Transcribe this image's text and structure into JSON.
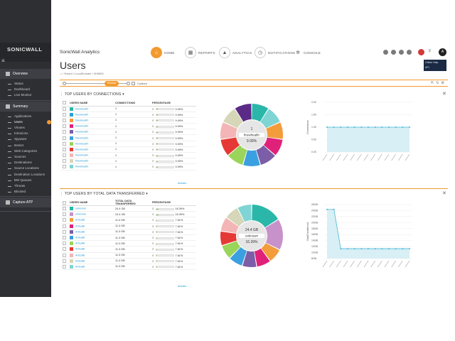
{
  "sidebar": {
    "logo": "SONICWALL",
    "sections": [
      {
        "label": "Overview",
        "items": [
          "Status",
          "Dashboard",
          "Live Monitor"
        ]
      },
      {
        "label": "Summary",
        "items": [
          "Applications",
          "Users",
          "Viruses",
          "Intrusions",
          "Spyware",
          "Botnet",
          "Web Categories",
          "Sources",
          "Destinations",
          "Source Locations",
          "Destination Locations",
          "BW Queues",
          "Threats",
          "Blocked"
        ]
      },
      {
        "label": "Capture ATP",
        "items": []
      }
    ],
    "active_item": "Users"
  },
  "header": {
    "brand": "SonicWall Analytics",
    "nav": [
      {
        "label": "HOME",
        "icon": "home-icon",
        "active": true
      },
      {
        "label": "REPORTS",
        "icon": "reports-icon",
        "active": false
      },
      {
        "label": "ANALYTICS",
        "icon": "analytics-icon",
        "active": false
      },
      {
        "label": "NOTIFICATIONS",
        "icon": "clock-icon",
        "active": false
      },
      {
        "label": "CONSOLE",
        "icon": "gear-icon",
        "active": false
      }
    ],
    "avatar": "A",
    "tooltip": [
      "Online Help",
      "API"
    ]
  },
  "page": {
    "title": "Users",
    "breadcrumb": "/ Tenant / LocalDomain / 0H0800"
  },
  "timeline": {
    "pill": "Window",
    "custom_label": "Custom"
  },
  "panel1": {
    "title": "TOP USERS BY CONNECTIONS",
    "columns": [
      "USERS NAME",
      "CONNECTIONS",
      "PERCENTAGE"
    ],
    "rows": [
      {
        "name": "firewhealth",
        "value": "1",
        "pct": "9.09%",
        "color": "#2ab7a9"
      },
      {
        "name": "firewhealth",
        "value": "1",
        "pct": "9.09%",
        "color": "#2a9fd6"
      },
      {
        "name": "firewhealth",
        "value": "1",
        "pct": "9.09%",
        "color": "#f39c3c"
      },
      {
        "name": "firewhealth",
        "value": "1",
        "pct": "9.09%",
        "color": "#e0217a"
      },
      {
        "name": "firewhealth",
        "value": "1",
        "pct": "9.09%",
        "color": "#7b5ea7"
      },
      {
        "name": "firewhealth",
        "value": "1",
        "pct": "9.09%",
        "color": "#3aa0e0"
      },
      {
        "name": "firewhealth",
        "value": "1",
        "pct": "9.09%",
        "color": "#9bd45a"
      },
      {
        "name": "firewhealth",
        "value": "1",
        "pct": "9.09%",
        "color": "#e53935"
      },
      {
        "name": "firewhealth",
        "value": "1",
        "pct": "9.09%",
        "color": "#f3b5b5"
      },
      {
        "name": "firewhealth",
        "value": "1",
        "pct": "9.09%",
        "color": "#d6d6b8"
      },
      {
        "name": "firewhealth",
        "value": "1",
        "pct": "9.09%",
        "color": "#7fd4d4"
      }
    ],
    "details": "details...",
    "donut_center": [
      "1",
      "firewhealth",
      "9.09%"
    ],
    "chart_ylabel": "Connections"
  },
  "panel2": {
    "title": "TOP USERS BY TOTAL DATA TRANSFERRED",
    "columns": [
      "USERS NAME",
      "TOTAL DATA TRANSFERRED",
      "PERCENTAGE"
    ],
    "rows": [
      {
        "name": "unknown",
        "value": "24.4 GB",
        "pct": "16.39%",
        "color": "#2ab7a9"
      },
      {
        "name": "unknown",
        "value": "24.4 GB",
        "pct": "16.39%",
        "color": "#c792c9"
      },
      {
        "name": "ArticalB",
        "value": "11.3 GB",
        "pct": "7.61%",
        "color": "#f39c3c"
      },
      {
        "name": "ArticalB",
        "value": "11.3 GB",
        "pct": "7.61%",
        "color": "#e0217a"
      },
      {
        "name": "ArticalB",
        "value": "11.3 GB",
        "pct": "7.61%",
        "color": "#7b5ea7"
      },
      {
        "name": "ArticalB",
        "value": "11.3 GB",
        "pct": "7.61%",
        "color": "#3aa0e0"
      },
      {
        "name": "ArticalB",
        "value": "11.3 GB",
        "pct": "7.61%",
        "color": "#9bd45a"
      },
      {
        "name": "ArticalB",
        "value": "11.3 GB",
        "pct": "7.61%",
        "color": "#e53935"
      },
      {
        "name": "ArticalB",
        "value": "11.3 GB",
        "pct": "7.61%",
        "color": "#f3b5b5"
      },
      {
        "name": "ArticalB",
        "value": "11.3 GB",
        "pct": "7.61%",
        "color": "#d6d6b8"
      },
      {
        "name": "ArticalB",
        "value": "11.3 GB",
        "pct": "7.61%",
        "color": "#7fd4d4"
      }
    ],
    "details": "details...",
    "donut_center": [
      "24.4 GB",
      "unknown",
      "16.39%"
    ],
    "chart_ylabel": "DataTransferred"
  },
  "chart_data": [
    {
      "type": "pie",
      "categories": [
        "firewhealth",
        "firewhealth",
        "firewhealth",
        "firewhealth",
        "firewhealth",
        "firewhealth",
        "firewhealth",
        "firewhealth",
        "firewhealth",
        "firewhealth",
        "firewhealth"
      ],
      "values": [
        9.09,
        9.09,
        9.09,
        9.09,
        9.09,
        9.09,
        9.09,
        9.09,
        9.09,
        9.09,
        9.09
      ],
      "colors": [
        "#2ab7a9",
        "#7fd4d4",
        "#f39c3c",
        "#e0217a",
        "#7b5ea7",
        "#3aa0e0",
        "#9bd45a",
        "#e53935",
        "#f3b5b5",
        "#d6d6b8",
        "#5b2a86"
      ]
    },
    {
      "type": "area",
      "x": [
        "",
        "",
        "",
        "",
        "",
        "",
        "",
        "",
        "",
        "",
        "",
        "",
        ""
      ],
      "values": [
        1,
        1,
        1,
        1,
        1,
        1,
        1,
        1,
        1,
        1,
        1,
        1,
        1
      ],
      "yticks": [
        "0.00",
        "0.50",
        "1.00",
        "1.50",
        "2.00"
      ],
      "ylim": [
        0,
        2
      ],
      "ylabel": "Connections"
    },
    {
      "type": "pie",
      "categories": [
        "unknown",
        "unknown",
        "ArticalB",
        "ArticalB",
        "ArticalB",
        "ArticalB",
        "ArticalB",
        "ArticalB",
        "ArticalB",
        "ArticalB",
        "ArticalB"
      ],
      "values": [
        16.39,
        16.39,
        7.61,
        7.61,
        7.61,
        7.61,
        7.61,
        7.61,
        7.61,
        7.61,
        7.61
      ],
      "colors": [
        "#2ab7a9",
        "#c792c9",
        "#f39c3c",
        "#e0217a",
        "#7b5ea7",
        "#3aa0e0",
        "#9bd45a",
        "#e53935",
        "#f3b5b5",
        "#d6d6b8",
        "#7fd4d4"
      ]
    },
    {
      "type": "area",
      "x": [
        "",
        "",
        "",
        "",
        "",
        "",
        "",
        "",
        "",
        "",
        "",
        "",
        ""
      ],
      "values": [
        24.4,
        24.4,
        11.3,
        11.3,
        11.3,
        11.3,
        11.3,
        11.3,
        11.3,
        11.3,
        11.3,
        11.3,
        11.3
      ],
      "yticks": [
        "8GB",
        "10GB",
        "12GB",
        "14GB",
        "16GB",
        "18GB",
        "20GB",
        "22GB",
        "24GB",
        "26GB"
      ],
      "ylim": [
        8,
        26
      ],
      "ylabel": "DataTransferred"
    }
  ]
}
